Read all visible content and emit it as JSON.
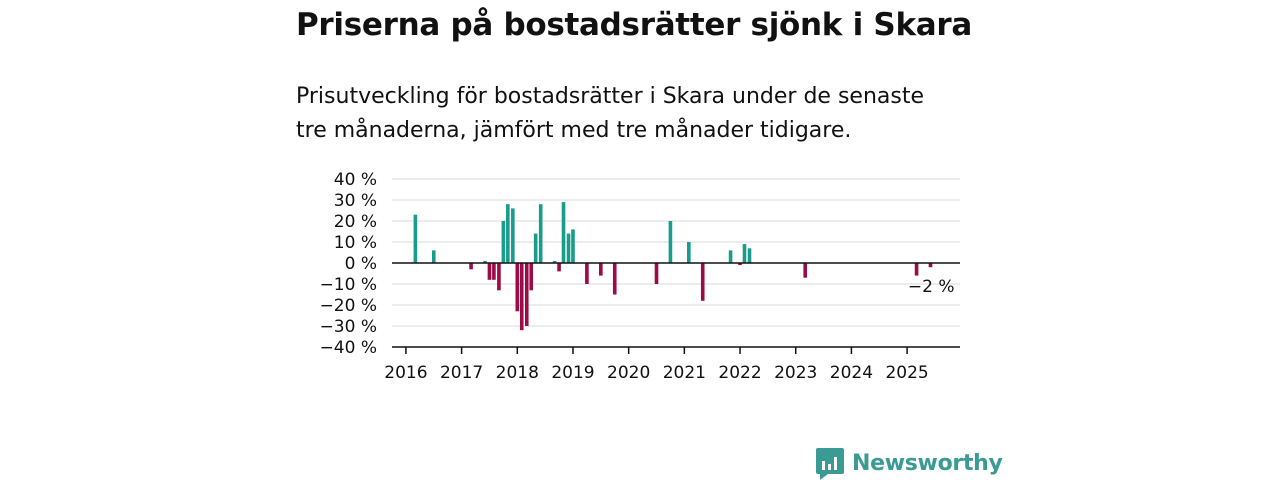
{
  "title": "Priserna på bostadsrätter sjönk i Skara",
  "subtitle_line1": "Prisutveckling för bostadsrätter i Skara under de senaste",
  "subtitle_line2": "tre månaderna, jämfört med tre månader tidigare.",
  "brand": {
    "name": "Newsworthy",
    "color": "#3a9b94",
    "icon": "newsworthy-logo-icon"
  },
  "colors": {
    "positive": "#1a9c8c",
    "negative": "#9c0b45",
    "grid": "#d9d9d9",
    "axis": "#111111"
  },
  "chart_data": {
    "type": "bar",
    "title": "Priserna på bostadsrätter sjönk i Skara",
    "xlabel": "",
    "ylabel": "",
    "ylim": [
      -40,
      40
    ],
    "xlim": [
      2015.75,
      2025.95
    ],
    "y_ticks": [
      40,
      30,
      20,
      10,
      0,
      -10,
      -20,
      -30,
      -40
    ],
    "y_tick_labels": [
      "40 %",
      "30 %",
      "20 %",
      "10 %",
      "0 %",
      "−10 %",
      "−20 %",
      "−30 %",
      "−40 %"
    ],
    "x_ticks": [
      2016,
      2017,
      2018,
      2019,
      2020,
      2021,
      2022,
      2023,
      2024,
      2025
    ],
    "x_tick_labels": [
      "2016",
      "2017",
      "2018",
      "2019",
      "2020",
      "2021",
      "2022",
      "2023",
      "2024",
      "2025"
    ],
    "grid": true,
    "annotation": {
      "text": "−2 %",
      "x": 2025.42,
      "y": -2
    },
    "series": [
      {
        "x": [
          2016.17,
          2016.5,
          2017.17,
          2017.42,
          2017.5,
          2017.58,
          2017.67,
          2017.75,
          2017.83,
          2017.92,
          2018.0,
          2018.08,
          2018.17,
          2018.25,
          2018.33,
          2018.42,
          2018.67,
          2018.75,
          2018.83,
          2018.92,
          2019.0,
          2019.25,
          2019.5,
          2019.75,
          2020.5,
          2020.75,
          2021.08,
          2021.33,
          2021.83,
          2022.0,
          2022.08,
          2022.17,
          2023.17,
          2025.17,
          2025.42
        ],
        "values": [
          23,
          6,
          -3,
          1,
          -8,
          -8,
          -13,
          20,
          28,
          26,
          -23,
          -32,
          -30,
          -13,
          14,
          28,
          1,
          -4,
          29,
          14,
          16,
          -10,
          -6,
          -15,
          -10,
          20,
          10,
          -18,
          6,
          -1,
          9,
          7,
          -7,
          -6,
          -2
        ]
      }
    ]
  }
}
